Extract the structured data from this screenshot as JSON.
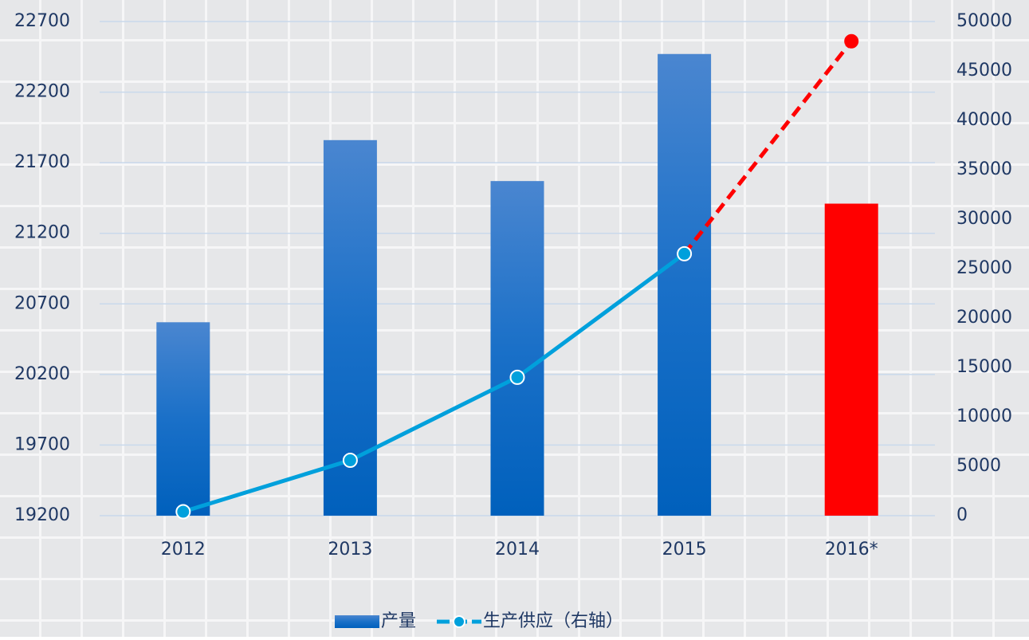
{
  "chart_data": {
    "type": "bar_line",
    "categories": [
      "2012",
      "2013",
      "2014",
      "2015",
      "2016*"
    ],
    "series": [
      {
        "name": "产量",
        "type": "bar",
        "color": "#1a6fc8",
        "colors": [
          "#1a6fc8",
          "#1a6fc8",
          "#1a6fc8",
          "#1a6fc8",
          "#ff0000"
        ],
        "values": [
          20570,
          21860,
          21570,
          22470,
          21410
        ]
      },
      {
        "name": "生产供应（右轴）",
        "type": "line",
        "axis": "y2",
        "color": "#00a0dc",
        "forecast_color": "#ff0000",
        "values": [
          400,
          5600,
          14000,
          26500,
          48000
        ]
      }
    ],
    "forecast_index": 4,
    "ylim": [
      19200,
      22700
    ],
    "yticks": [
      19200,
      19700,
      20200,
      20700,
      21200,
      21700,
      22200,
      22700
    ],
    "y2lim": [
      0,
      50000
    ],
    "y2ticks": [
      0,
      5000,
      10000,
      15000,
      20000,
      25000,
      30000,
      35000,
      40000,
      45000,
      50000
    ],
    "grid": true,
    "legend": "bottom"
  }
}
